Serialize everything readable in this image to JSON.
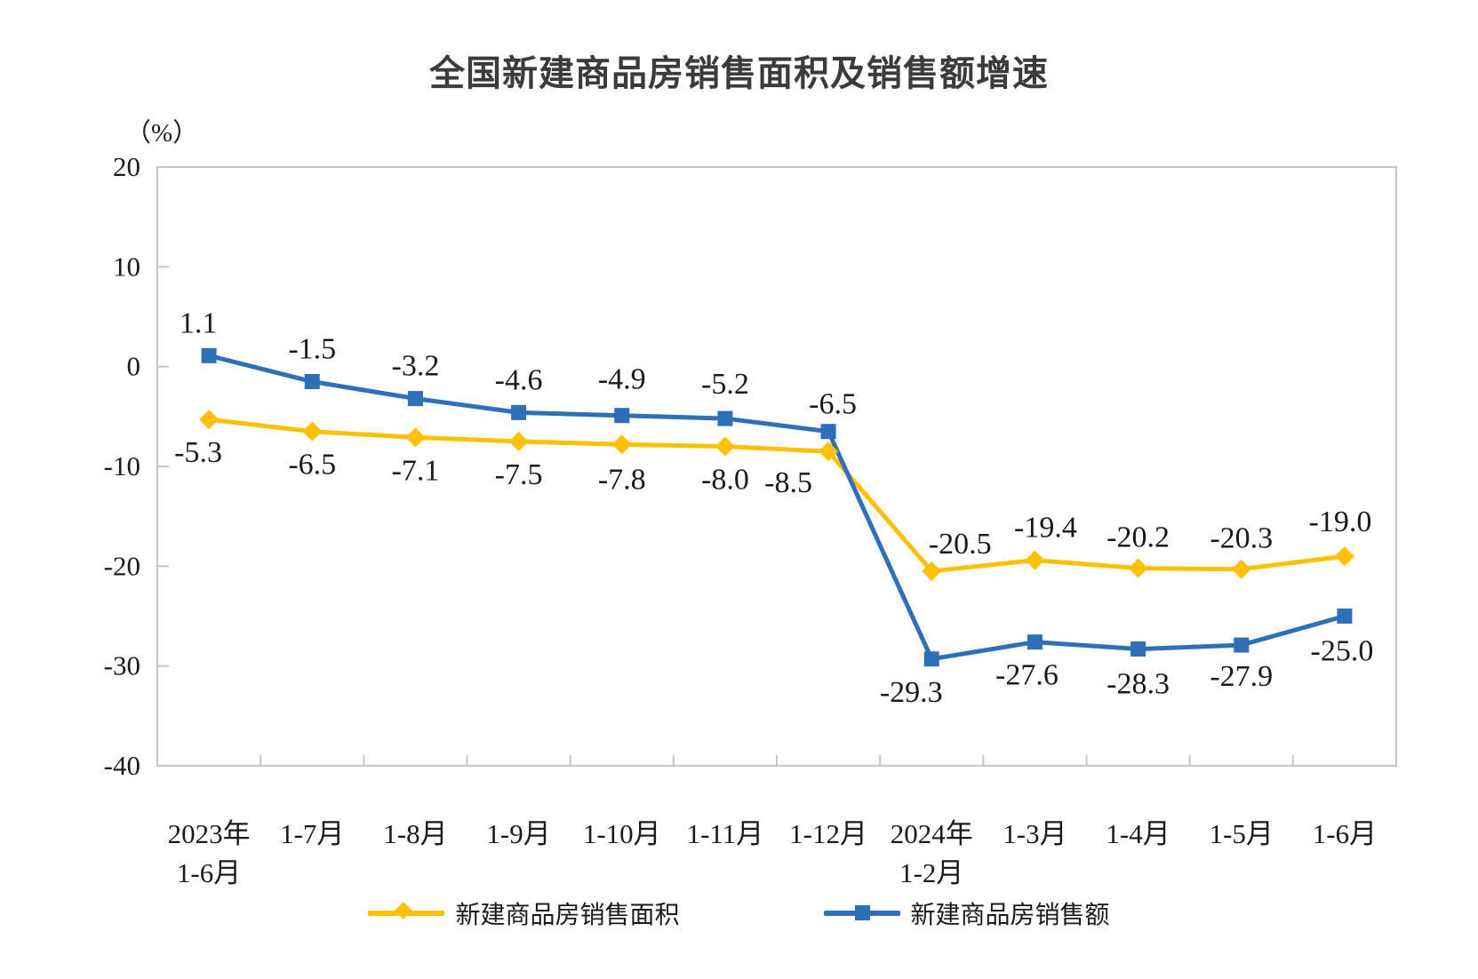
{
  "page": {
    "background": "#FFFFFF"
  },
  "header": {
    "title": "全国新建商品房销售面积及销售额增速"
  },
  "chart_data": {
    "type": "line",
    "title": "全国新建商品房销售面积及销售额增速",
    "unit_label": "（%）",
    "categories": [
      [
        "2023年",
        "1-6月"
      ],
      [
        "1-7月"
      ],
      [
        "1-8月"
      ],
      [
        "1-9月"
      ],
      [
        "1-10月"
      ],
      [
        "1-11月"
      ],
      [
        "1-12月"
      ],
      [
        "2024年",
        "1-2月"
      ],
      [
        "1-3月"
      ],
      [
        "1-4月"
      ],
      [
        "1-5月"
      ],
      [
        "1-6月"
      ]
    ],
    "series": [
      {
        "name": "新建商品房销售面积",
        "marker": "diamond",
        "color": "#FFC000",
        "values": [
          -5.3,
          -6.5,
          -7.1,
          -7.5,
          -7.8,
          -8.0,
          -8.5,
          -20.5,
          -19.4,
          -20.2,
          -20.3,
          -19.0
        ],
        "labels": [
          "-5.3",
          "-6.5",
          "-7.1",
          "-7.5",
          "-7.8",
          "-8.0",
          "-8.5",
          "-20.5",
          "-19.4",
          "-20.2",
          "-20.3",
          "-19.0"
        ]
      },
      {
        "name": "新建商品房销售额",
        "marker": "square",
        "color": "#2D6FB8",
        "values": [
          1.1,
          -1.5,
          -3.2,
          -4.6,
          -4.9,
          -5.2,
          -6.5,
          -29.3,
          -27.6,
          -28.3,
          -27.9,
          -25.0
        ],
        "labels": [
          "1.1",
          "-1.5",
          "-3.2",
          "-4.6",
          "-4.9",
          "-5.2",
          "-6.5",
          "-29.3",
          "-27.6",
          "-28.3",
          "-27.9",
          "-25.0"
        ]
      }
    ],
    "ylim": [
      -40,
      20
    ],
    "yticks": [
      "20",
      "10",
      "0",
      "-10",
      "-20",
      "-30",
      "-40"
    ],
    "ytick_values": [
      20,
      10,
      0,
      -10,
      -20,
      -30,
      -40
    ],
    "grid": false,
    "legend_position": "bottom",
    "axis_color": "#C6C6C6",
    "label_color": "#1A1A1A"
  }
}
